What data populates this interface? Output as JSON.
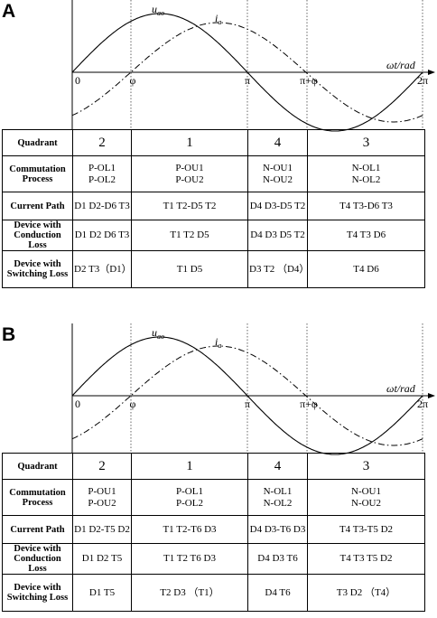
{
  "panels": [
    {
      "label": "A",
      "curve_labels": {
        "voltage": "u",
        "voltage_sub": "ao",
        "current": "i",
        "current_sub": "a"
      },
      "axis_label": "ωt/rad",
      "axis_ticks": [
        "0",
        "φ",
        "π",
        "π+φ",
        "2π"
      ],
      "table": {
        "rows": [
          [
            "Quadrant",
            "2",
            "1",
            "4",
            "3"
          ],
          [
            "Commutation Process",
            [
              "P-OL1",
              "P-OL2"
            ],
            [
              "P-OU1",
              "P-OU2"
            ],
            [
              "N-OU1",
              "N-OU2"
            ],
            [
              "N-OL1",
              "N-OL2"
            ]
          ],
          [
            "Current Path",
            "D1 D2-D6 T3",
            "T1 T2-D5 T2",
            "D4 D3-D5 T2",
            "T4 T3-D6 T3"
          ],
          [
            "Device with Conduction Loss",
            "D1 D2 D6 T3",
            "T1 T2 D5",
            "D4 D3 D5 T2",
            "T4 T3 D6"
          ],
          [
            "Device with Switching Loss",
            "D2 T3（D1）",
            "T1 D5",
            "D3 T2 （D4）",
            "T4 D6"
          ]
        ]
      }
    },
    {
      "label": "B",
      "curve_labels": {
        "voltage": "u",
        "voltage_sub": "ao",
        "current": "i",
        "current_sub": "a"
      },
      "axis_label": "ωt/rad",
      "axis_ticks": [
        "0",
        "φ",
        "π",
        "π+φ",
        "2π"
      ],
      "table": {
        "rows": [
          [
            "Quadrant",
            "2",
            "1",
            "4",
            "3"
          ],
          [
            "Commutation Process",
            [
              "P-OU1",
              "P-OU2"
            ],
            [
              "P-OL1",
              "P-OL2"
            ],
            [
              "N-OL1",
              "N-OL2"
            ],
            [
              "N-OU1",
              "N-OU2"
            ]
          ],
          [
            "Current Path",
            "D1 D2-T5 D2",
            "T1 T2-T6 D3",
            "D4 D3-T6 D3",
            "T4 T3-T5 D2"
          ],
          [
            "Device with Conduction Loss",
            "D1 D2 T5",
            "T1 T2 T6 D3",
            "D4 D3 T6",
            "T4 T3 T5 D2"
          ],
          [
            "Device with Switching Loss",
            "D1 T5",
            "T2 D3 （T1）",
            "D4 T6",
            "T3 D2 （T4）"
          ]
        ]
      }
    }
  ]
}
